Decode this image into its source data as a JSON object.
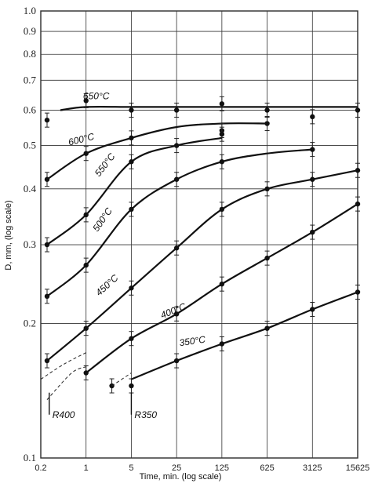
{
  "chart_data": {
    "type": "line",
    "xlabel": "Time, min. (log scale)",
    "ylabel": "D, mm, (log scale)",
    "x_scale": "log",
    "y_scale": "log",
    "xlim": [
      0.2,
      15625
    ],
    "ylim": [
      0.1,
      1.0
    ],
    "x_ticks": [
      0.2,
      1,
      5,
      25,
      125,
      625,
      3125,
      15625
    ],
    "x_tick_labels": [
      "0.2",
      "1",
      "5",
      "25",
      "125",
      "625",
      "3125",
      "15625"
    ],
    "y_ticks": [
      0.1,
      0.2,
      0.3,
      0.4,
      0.5,
      0.6,
      0.7,
      0.8,
      0.9,
      1.0
    ],
    "y_tick_labels": [
      "0.1",
      "0.2",
      "0.3",
      "0.4",
      "0.5",
      "0.6",
      "0.7",
      "0.8",
      "0.9",
      "1.0"
    ],
    "grid": true,
    "series": [
      {
        "name": "650°C",
        "x": [
          0.4,
          1,
          5,
          25,
          125,
          625,
          15625
        ],
        "y": [
          0.6,
          0.61,
          0.61,
          0.61,
          0.61,
          0.61,
          0.61
        ],
        "points": {
          "x": [
            0.25,
            1,
            5,
            25,
            125,
            625,
            3125,
            15625
          ],
          "y": [
            0.57,
            0.63,
            0.6,
            0.6,
            0.62,
            0.6,
            0.58,
            0.6
          ]
        }
      },
      {
        "name": "600°C",
        "x": [
          0.25,
          1,
          5,
          25,
          125,
          625
        ],
        "y": [
          0.42,
          0.48,
          0.52,
          0.55,
          0.56,
          0.56
        ],
        "points": {
          "x": [
            0.25,
            1,
            5,
            125,
            625
          ],
          "y": [
            0.42,
            0.48,
            0.52,
            0.54,
            0.56
          ]
        }
      },
      {
        "name": "550°C",
        "x": [
          0.25,
          1,
          5,
          25,
          125
        ],
        "y": [
          0.3,
          0.35,
          0.46,
          0.5,
          0.52
        ],
        "points": {
          "x": [
            0.25,
            1,
            5,
            25,
            125
          ],
          "y": [
            0.3,
            0.35,
            0.46,
            0.5,
            0.53
          ]
        }
      },
      {
        "name": "500°C",
        "x": [
          0.25,
          1,
          5,
          25,
          125,
          625,
          3125
        ],
        "y": [
          0.23,
          0.27,
          0.36,
          0.42,
          0.46,
          0.48,
          0.49
        ],
        "points": {
          "x": [
            0.25,
            1,
            5,
            25,
            125,
            3125
          ],
          "y": [
            0.23,
            0.27,
            0.36,
            0.42,
            0.46,
            0.49
          ]
        }
      },
      {
        "name": "450°C",
        "x": [
          0.25,
          1,
          5,
          25,
          125,
          625,
          3125,
          15625
        ],
        "y": [
          0.165,
          0.195,
          0.24,
          0.295,
          0.36,
          0.4,
          0.42,
          0.44
        ],
        "points": {
          "x": [
            0.25,
            1,
            5,
            25,
            125,
            625,
            3125,
            15625
          ],
          "y": [
            0.165,
            0.195,
            0.24,
            0.295,
            0.36,
            0.4,
            0.42,
            0.44
          ]
        }
      },
      {
        "name": "400°C",
        "x": [
          1,
          5,
          25,
          125,
          625,
          3125,
          15625
        ],
        "y": [
          0.155,
          0.185,
          0.21,
          0.245,
          0.28,
          0.32,
          0.37
        ],
        "points": {
          "x": [
            1,
            5,
            25,
            125,
            625,
            3125,
            15625
          ],
          "y": [
            0.155,
            0.185,
            0.21,
            0.245,
            0.28,
            0.32,
            0.37
          ]
        }
      },
      {
        "name": "350°C",
        "x": [
          5,
          25,
          125,
          625,
          3125,
          15625
        ],
        "y": [
          0.15,
          0.165,
          0.18,
          0.195,
          0.215,
          0.235
        ],
        "points": {
          "x": [
            2.5,
            5,
            25,
            125,
            625,
            3125,
            15625
          ],
          "y": [
            0.145,
            0.145,
            0.165,
            0.18,
            0.195,
            0.215,
            0.235
          ]
        }
      }
    ],
    "annotations": [
      "R400",
      "R350"
    ]
  }
}
